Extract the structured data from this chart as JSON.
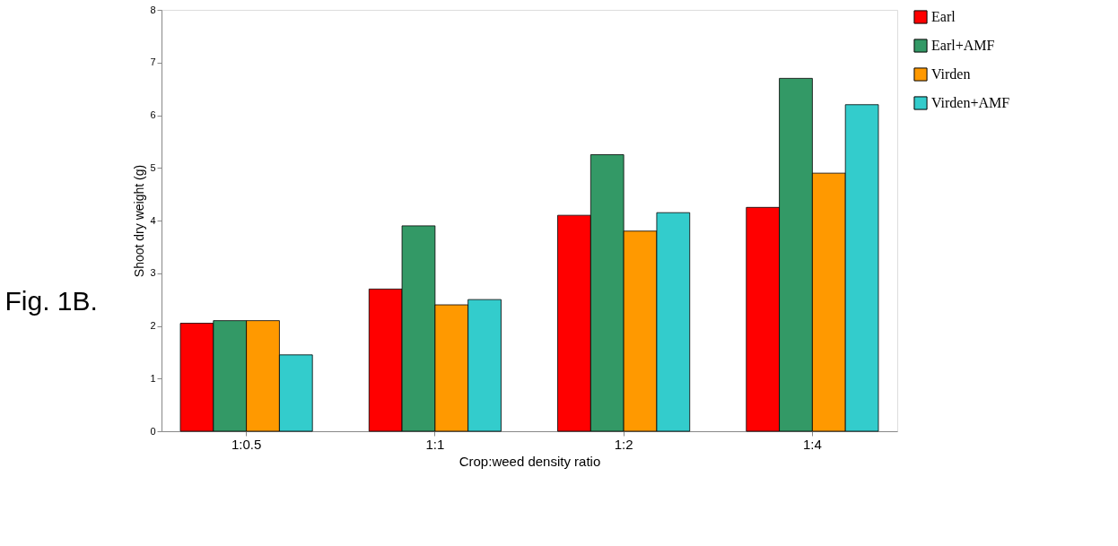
{
  "chart_data": {
    "type": "bar",
    "title": "Fig. 1B.",
    "xlabel": "Crop:weed density ratio",
    "ylabel": "Shoot dry weight (g)",
    "categories": [
      "1:0.5",
      "1:1",
      "1:2",
      "1:4"
    ],
    "series": [
      {
        "name": "Earl",
        "color": "#ff0000",
        "values": [
          2.05,
          2.7,
          4.1,
          4.25
        ]
      },
      {
        "name": "Earl+AMF",
        "color": "#339966",
        "values": [
          2.1,
          3.9,
          5.25,
          6.7
        ]
      },
      {
        "name": "Virden",
        "color": "#ff9900",
        "values": [
          2.1,
          2.4,
          3.8,
          4.9
        ]
      },
      {
        "name": "Virden+AMF",
        "color": "#33cccc",
        "values": [
          1.45,
          2.5,
          4.15,
          6.2
        ]
      }
    ],
    "ylim": [
      0,
      8
    ],
    "yticks": [
      0,
      1,
      2,
      3,
      4,
      5,
      6,
      7,
      8
    ],
    "grid": false,
    "legend": "top right"
  }
}
